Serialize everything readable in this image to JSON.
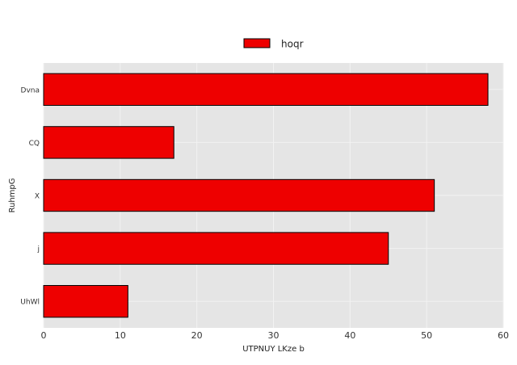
{
  "chart_data": {
    "type": "bar",
    "orientation": "horizontal",
    "categories": [
      "Dvna",
      "CQ",
      "X",
      "j",
      "UhWl"
    ],
    "series": [
      {
        "name": "hoqr",
        "values": [
          58,
          17,
          51,
          45,
          11
        ],
        "color": "#ee0000"
      }
    ],
    "xlabel": "UTPNUY LKze b",
    "ylabel": "RuhmpG",
    "xlim": [
      0,
      60
    ],
    "xticks": [
      0,
      10,
      20,
      30,
      40,
      50,
      60
    ],
    "grid": true,
    "legend_position": "top-center",
    "background_color": "#e5e5e5",
    "grid_color": "#f2f2f2",
    "bar_edge_color": "#000000"
  }
}
